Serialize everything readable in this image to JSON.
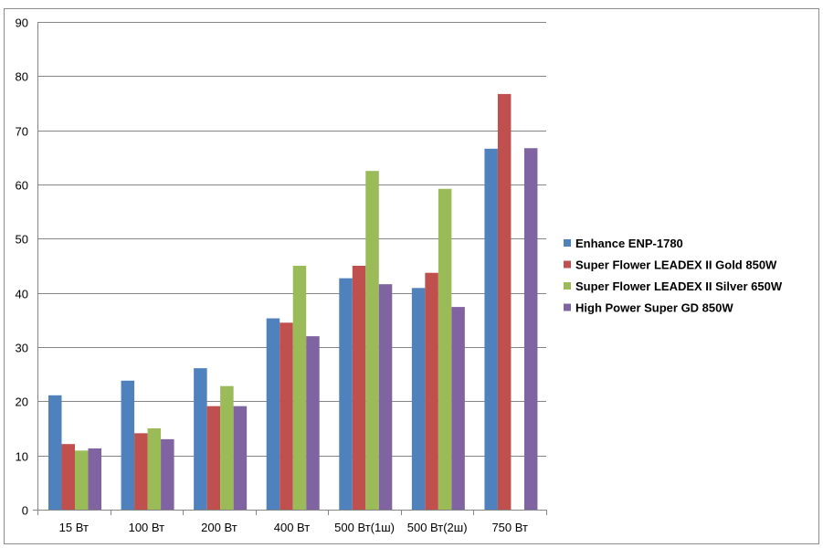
{
  "chart_data": {
    "type": "bar",
    "title": "",
    "xlabel": "",
    "ylabel": "",
    "ylim": [
      0,
      90
    ],
    "y_ticks": [
      0,
      10,
      20,
      30,
      40,
      50,
      60,
      70,
      80,
      90
    ],
    "grid": true,
    "legend_position": "right",
    "categories": [
      "15 Вт",
      "100 Вт",
      "200 Вт",
      "400 Вт",
      "500 Вт(1ш)",
      "500 Вт(2ш)",
      "750 Вт"
    ],
    "series": [
      {
        "name": "Enhance ENP-1780",
        "color": "#4f81bd",
        "values": [
          21.1,
          23.8,
          26.1,
          35.3,
          42.7,
          40.9,
          66.6
        ]
      },
      {
        "name": "Super Flower LEADEX II Gold 850W",
        "color": "#c0504d",
        "values": [
          12.1,
          14.1,
          19.1,
          34.5,
          45.0,
          43.7,
          76.7
        ]
      },
      {
        "name": "Super Flower LEADEX II Silver 650W",
        "color": "#9bbb59",
        "values": [
          10.9,
          15.0,
          22.8,
          45.0,
          62.5,
          59.2,
          null
        ]
      },
      {
        "name": "High Power Super GD 850W",
        "color": "#8064a2",
        "values": [
          11.3,
          13.0,
          19.1,
          32.0,
          41.6,
          37.4,
          66.7
        ]
      }
    ]
  }
}
